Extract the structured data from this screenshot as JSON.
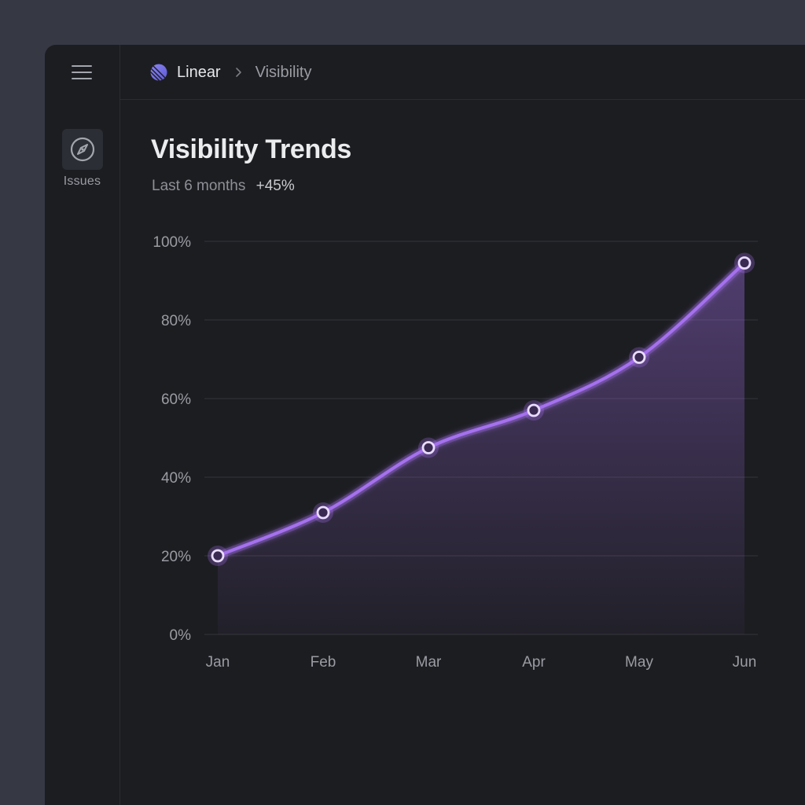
{
  "sidebar": {
    "nav_items": [
      {
        "label": "Issues",
        "icon": "compass-icon"
      }
    ]
  },
  "header": {
    "brand": "Linear",
    "breadcrumb_current": "Visibility"
  },
  "main": {
    "title": "Visibility Trends",
    "subtitle_period": "Last 6 months",
    "subtitle_change": "+45%"
  },
  "colors": {
    "accent": "#a571ee",
    "background": "#1c1d21",
    "grid": "#33353b"
  },
  "chart_data": {
    "type": "area",
    "categories": [
      "Jan",
      "Feb",
      "Mar",
      "Apr",
      "May",
      "Jun"
    ],
    "series": [
      {
        "values": [
          20,
          31,
          47.5,
          57,
          70.5,
          94.5
        ]
      }
    ],
    "ylim": [
      0,
      100
    ],
    "yticks": [
      0,
      20,
      40,
      60,
      80,
      100
    ],
    "ytick_labels": [
      "0%",
      "20%",
      "40%",
      "60%",
      "80%",
      "100%"
    ],
    "grid": true,
    "legend": "none"
  }
}
